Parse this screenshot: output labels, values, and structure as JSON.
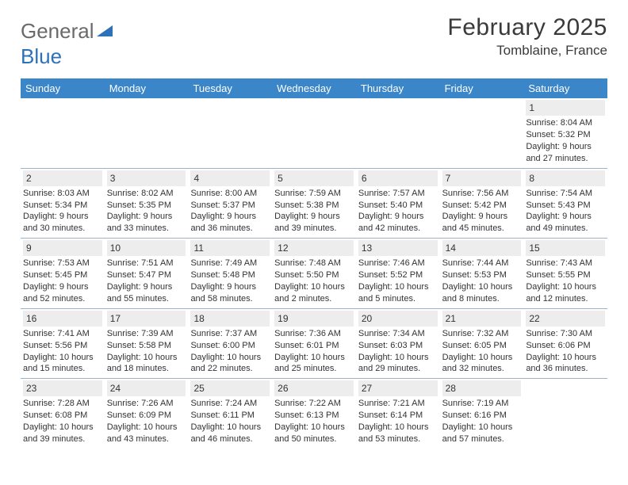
{
  "brand": {
    "word1": "General",
    "word2": "Blue"
  },
  "title": "February 2025",
  "location": "Tomblaine, France",
  "weekdays": [
    "Sunday",
    "Monday",
    "Tuesday",
    "Wednesday",
    "Thursday",
    "Friday",
    "Saturday"
  ],
  "colors": {
    "header_bar": "#3a86c8",
    "header_text": "#ffffff",
    "daynum_bg": "#ededed",
    "rule": "#9bb4c9",
    "logo_gray": "#6a6a6a",
    "logo_blue": "#2d72b8"
  },
  "weeks": [
    [
      {
        "n": "",
        "sunrise": "",
        "sunset": "",
        "daylight": "",
        "empty": true
      },
      {
        "n": "",
        "sunrise": "",
        "sunset": "",
        "daylight": "",
        "empty": true
      },
      {
        "n": "",
        "sunrise": "",
        "sunset": "",
        "daylight": "",
        "empty": true
      },
      {
        "n": "",
        "sunrise": "",
        "sunset": "",
        "daylight": "",
        "empty": true
      },
      {
        "n": "",
        "sunrise": "",
        "sunset": "",
        "daylight": "",
        "empty": true
      },
      {
        "n": "",
        "sunrise": "",
        "sunset": "",
        "daylight": "",
        "empty": true
      },
      {
        "n": "1",
        "sunrise": "Sunrise: 8:04 AM",
        "sunset": "Sunset: 5:32 PM",
        "daylight": "Daylight: 9 hours and 27 minutes."
      }
    ],
    [
      {
        "n": "2",
        "sunrise": "Sunrise: 8:03 AM",
        "sunset": "Sunset: 5:34 PM",
        "daylight": "Daylight: 9 hours and 30 minutes."
      },
      {
        "n": "3",
        "sunrise": "Sunrise: 8:02 AM",
        "sunset": "Sunset: 5:35 PM",
        "daylight": "Daylight: 9 hours and 33 minutes."
      },
      {
        "n": "4",
        "sunrise": "Sunrise: 8:00 AM",
        "sunset": "Sunset: 5:37 PM",
        "daylight": "Daylight: 9 hours and 36 minutes."
      },
      {
        "n": "5",
        "sunrise": "Sunrise: 7:59 AM",
        "sunset": "Sunset: 5:38 PM",
        "daylight": "Daylight: 9 hours and 39 minutes."
      },
      {
        "n": "6",
        "sunrise": "Sunrise: 7:57 AM",
        "sunset": "Sunset: 5:40 PM",
        "daylight": "Daylight: 9 hours and 42 minutes."
      },
      {
        "n": "7",
        "sunrise": "Sunrise: 7:56 AM",
        "sunset": "Sunset: 5:42 PM",
        "daylight": "Daylight: 9 hours and 45 minutes."
      },
      {
        "n": "8",
        "sunrise": "Sunrise: 7:54 AM",
        "sunset": "Sunset: 5:43 PM",
        "daylight": "Daylight: 9 hours and 49 minutes."
      }
    ],
    [
      {
        "n": "9",
        "sunrise": "Sunrise: 7:53 AM",
        "sunset": "Sunset: 5:45 PM",
        "daylight": "Daylight: 9 hours and 52 minutes."
      },
      {
        "n": "10",
        "sunrise": "Sunrise: 7:51 AM",
        "sunset": "Sunset: 5:47 PM",
        "daylight": "Daylight: 9 hours and 55 minutes."
      },
      {
        "n": "11",
        "sunrise": "Sunrise: 7:49 AM",
        "sunset": "Sunset: 5:48 PM",
        "daylight": "Daylight: 9 hours and 58 minutes."
      },
      {
        "n": "12",
        "sunrise": "Sunrise: 7:48 AM",
        "sunset": "Sunset: 5:50 PM",
        "daylight": "Daylight: 10 hours and 2 minutes."
      },
      {
        "n": "13",
        "sunrise": "Sunrise: 7:46 AM",
        "sunset": "Sunset: 5:52 PM",
        "daylight": "Daylight: 10 hours and 5 minutes."
      },
      {
        "n": "14",
        "sunrise": "Sunrise: 7:44 AM",
        "sunset": "Sunset: 5:53 PM",
        "daylight": "Daylight: 10 hours and 8 minutes."
      },
      {
        "n": "15",
        "sunrise": "Sunrise: 7:43 AM",
        "sunset": "Sunset: 5:55 PM",
        "daylight": "Daylight: 10 hours and 12 minutes."
      }
    ],
    [
      {
        "n": "16",
        "sunrise": "Sunrise: 7:41 AM",
        "sunset": "Sunset: 5:56 PM",
        "daylight": "Daylight: 10 hours and 15 minutes."
      },
      {
        "n": "17",
        "sunrise": "Sunrise: 7:39 AM",
        "sunset": "Sunset: 5:58 PM",
        "daylight": "Daylight: 10 hours and 18 minutes."
      },
      {
        "n": "18",
        "sunrise": "Sunrise: 7:37 AM",
        "sunset": "Sunset: 6:00 PM",
        "daylight": "Daylight: 10 hours and 22 minutes."
      },
      {
        "n": "19",
        "sunrise": "Sunrise: 7:36 AM",
        "sunset": "Sunset: 6:01 PM",
        "daylight": "Daylight: 10 hours and 25 minutes."
      },
      {
        "n": "20",
        "sunrise": "Sunrise: 7:34 AM",
        "sunset": "Sunset: 6:03 PM",
        "daylight": "Daylight: 10 hours and 29 minutes."
      },
      {
        "n": "21",
        "sunrise": "Sunrise: 7:32 AM",
        "sunset": "Sunset: 6:05 PM",
        "daylight": "Daylight: 10 hours and 32 minutes."
      },
      {
        "n": "22",
        "sunrise": "Sunrise: 7:30 AM",
        "sunset": "Sunset: 6:06 PM",
        "daylight": "Daylight: 10 hours and 36 minutes."
      }
    ],
    [
      {
        "n": "23",
        "sunrise": "Sunrise: 7:28 AM",
        "sunset": "Sunset: 6:08 PM",
        "daylight": "Daylight: 10 hours and 39 minutes."
      },
      {
        "n": "24",
        "sunrise": "Sunrise: 7:26 AM",
        "sunset": "Sunset: 6:09 PM",
        "daylight": "Daylight: 10 hours and 43 minutes."
      },
      {
        "n": "25",
        "sunrise": "Sunrise: 7:24 AM",
        "sunset": "Sunset: 6:11 PM",
        "daylight": "Daylight: 10 hours and 46 minutes."
      },
      {
        "n": "26",
        "sunrise": "Sunrise: 7:22 AM",
        "sunset": "Sunset: 6:13 PM",
        "daylight": "Daylight: 10 hours and 50 minutes."
      },
      {
        "n": "27",
        "sunrise": "Sunrise: 7:21 AM",
        "sunset": "Sunset: 6:14 PM",
        "daylight": "Daylight: 10 hours and 53 minutes."
      },
      {
        "n": "28",
        "sunrise": "Sunrise: 7:19 AM",
        "sunset": "Sunset: 6:16 PM",
        "daylight": "Daylight: 10 hours and 57 minutes."
      },
      {
        "n": "",
        "sunrise": "",
        "sunset": "",
        "daylight": "",
        "empty": true
      }
    ]
  ]
}
